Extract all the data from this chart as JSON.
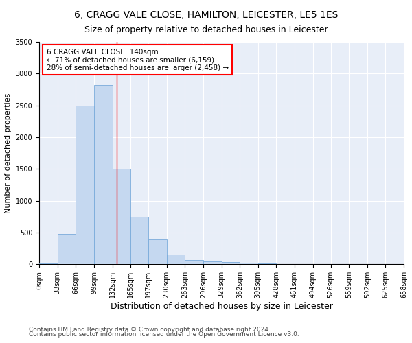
{
  "title1": "6, CRAGG VALE CLOSE, HAMILTON, LEICESTER, LE5 1ES",
  "title2": "Size of property relative to detached houses in Leicester",
  "xlabel": "Distribution of detached houses by size in Leicester",
  "ylabel": "Number of detached properties",
  "bin_edges": [
    0,
    33,
    66,
    99,
    132,
    165,
    197,
    230,
    263,
    296,
    329,
    362,
    395,
    428,
    461,
    494,
    526,
    559,
    592,
    625,
    658
  ],
  "bin_labels": [
    "0sqm",
    "33sqm",
    "66sqm",
    "99sqm",
    "132sqm",
    "165sqm",
    "197sqm",
    "230sqm",
    "263sqm",
    "296sqm",
    "329sqm",
    "362sqm",
    "395sqm",
    "428sqm",
    "461sqm",
    "494sqm",
    "526sqm",
    "559sqm",
    "592sqm",
    "625sqm",
    "658sqm"
  ],
  "counts": [
    20,
    480,
    2500,
    2820,
    1500,
    750,
    390,
    155,
    70,
    45,
    40,
    25,
    15,
    0,
    0,
    0,
    0,
    0,
    0,
    0
  ],
  "bar_color": "#c5d8f0",
  "bar_edgecolor": "#7aabdb",
  "property_line_x": 140,
  "property_line_color": "red",
  "annotation_line1": "6 CRAGG VALE CLOSE: 140sqm",
  "annotation_line2": "← 71% of detached houses are smaller (6,159)",
  "annotation_line3": "28% of semi-detached houses are larger (2,458) →",
  "annotation_box_color": "white",
  "annotation_box_edgecolor": "red",
  "ylim": [
    0,
    3500
  ],
  "yticks": [
    0,
    500,
    1000,
    1500,
    2000,
    2500,
    3000,
    3500
  ],
  "bg_color": "#e8eef8",
  "footer1": "Contains HM Land Registry data © Crown copyright and database right 2024.",
  "footer2": "Contains public sector information licensed under the Open Government Licence v3.0.",
  "title1_fontsize": 10,
  "title2_fontsize": 9,
  "xlabel_fontsize": 9,
  "ylabel_fontsize": 8,
  "tick_fontsize": 7,
  "annotation_fontsize": 7.5,
  "footer_fontsize": 6.5
}
